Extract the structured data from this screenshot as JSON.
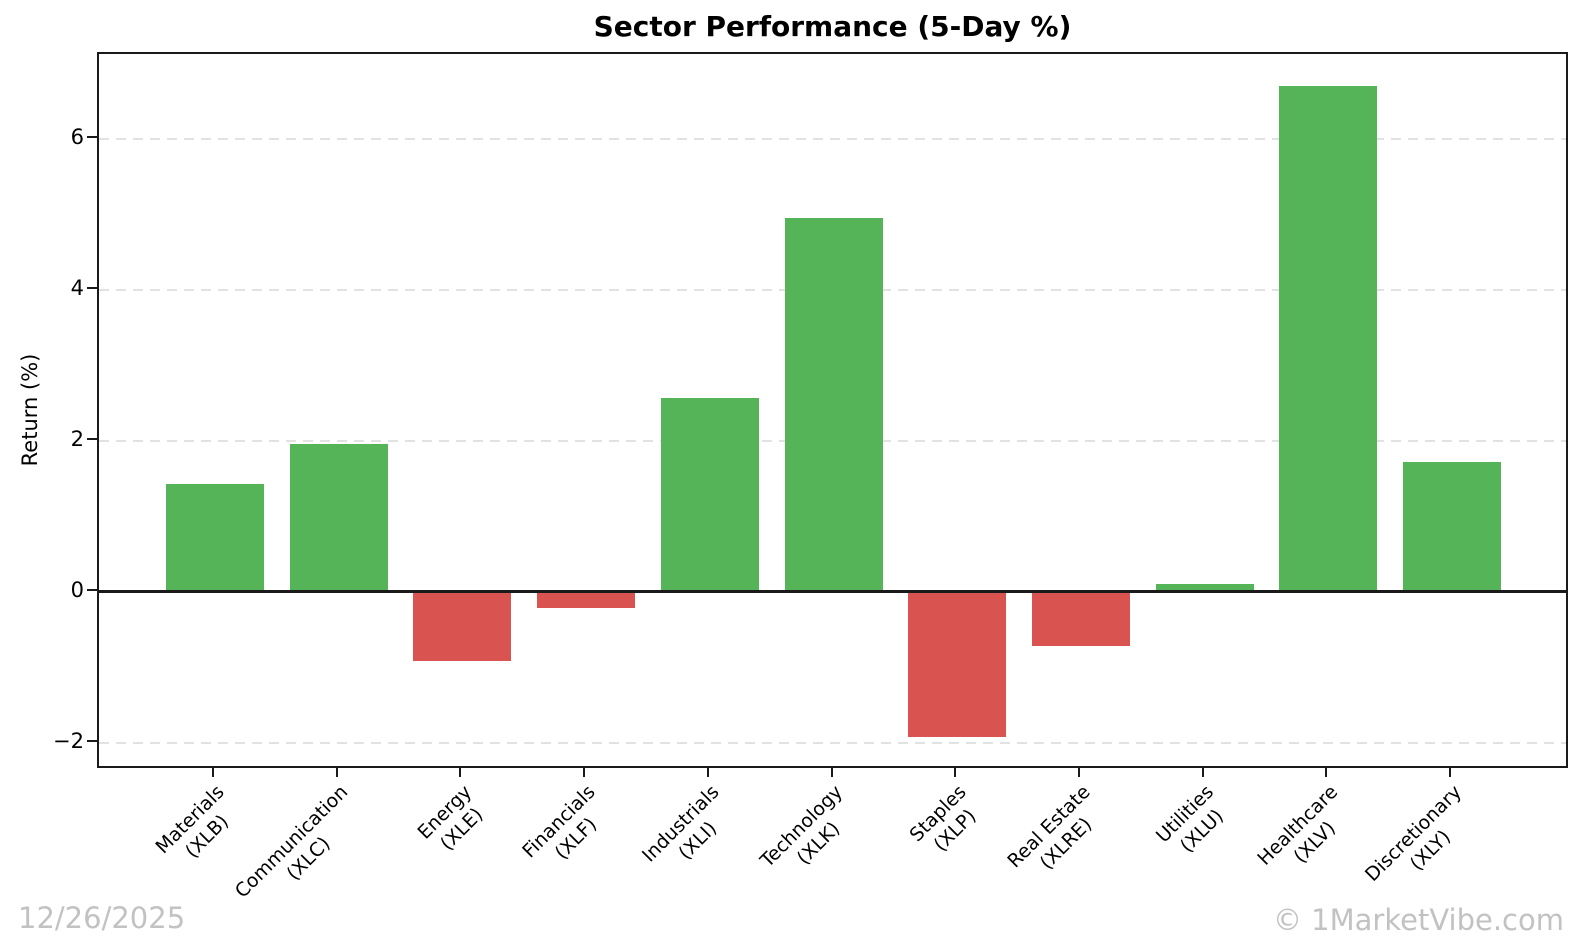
{
  "chart_data": {
    "type": "bar",
    "title": "Sector Performance (5-Day %)",
    "xlabel": "",
    "ylabel": "Return (%)",
    "categories": [
      {
        "label": "Materials",
        "ticker": "(XLB)"
      },
      {
        "label": "Communication",
        "ticker": "(XLC)"
      },
      {
        "label": "Energy",
        "ticker": "(XLE)"
      },
      {
        "label": "Financials",
        "ticker": "(XLF)"
      },
      {
        "label": "Industrials",
        "ticker": "(XLI)"
      },
      {
        "label": "Technology",
        "ticker": "(XLK)"
      },
      {
        "label": "Staples",
        "ticker": "(XLP)"
      },
      {
        "label": "Real Estate",
        "ticker": "(XLRE)"
      },
      {
        "label": "Utilities",
        "ticker": "(XLU)"
      },
      {
        "label": "Healthcare",
        "ticker": "(XLV)"
      },
      {
        "label": "Discretionary",
        "ticker": "(XLY)"
      }
    ],
    "values": [
      1.43,
      1.96,
      -0.91,
      -0.22,
      2.57,
      4.95,
      -1.92,
      -0.72,
      0.11,
      6.71,
      1.72
    ],
    "yticks": [
      {
        "label": "6",
        "value": 6
      },
      {
        "label": "4",
        "value": 4
      },
      {
        "label": "2",
        "value": 2
      },
      {
        "label": "0",
        "value": 0
      },
      {
        "label": "−2",
        "value": -2
      }
    ],
    "ylim": [
      -2.36,
      7.13
    ],
    "grid": "horizontal-dashed",
    "legend": "none",
    "colors": {
      "positive": "#55b457",
      "negative": "#d95350",
      "grid": "#e2e2e2",
      "axis": "#1a1a1a",
      "watermark": "#c2c2c2"
    }
  },
  "footer": {
    "date": "12/26/2025",
    "watermark": "© 1MarketVibe.com"
  }
}
